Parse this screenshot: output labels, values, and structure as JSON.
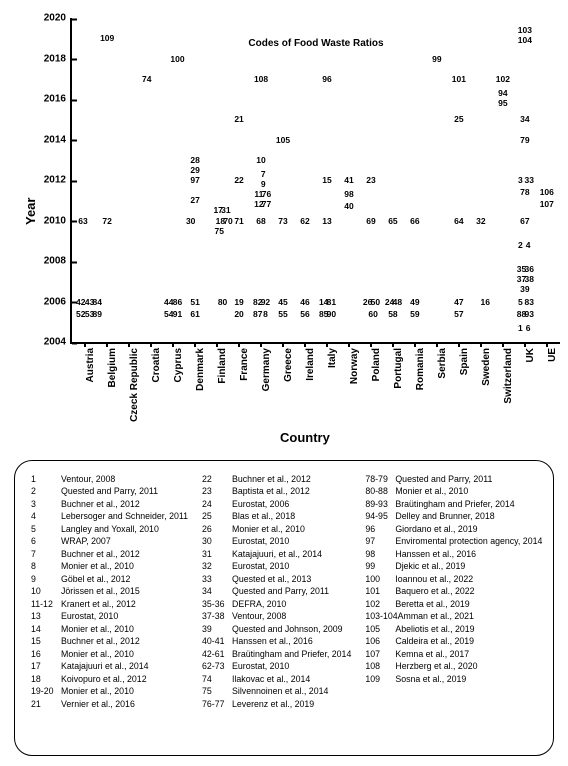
{
  "chart": {
    "type": "scatter-labeled",
    "title": "Codes of Food Waste Ratios",
    "title_fontsize": 10,
    "title_fontweight": "bold",
    "background_color": "#ffffff",
    "text_color": "#000000",
    "point_fontsize": 8.5,
    "ylabel": "Year",
    "xlabel": "Country",
    "axis_label_fontsize": 13,
    "tick_fontsize": 10,
    "ylim": [
      2004,
      2020
    ],
    "ytick_step": 2,
    "yticks": [
      2004,
      2006,
      2008,
      2010,
      2012,
      2014,
      2016,
      2018,
      2020
    ],
    "categories": [
      "Austria",
      "Belgium",
      "Czeck Republic",
      "Croatia",
      "Cyprus",
      "Denmark",
      "Finland",
      "France",
      "Germany",
      "Greece",
      "Ireland",
      "Italy",
      "Norway",
      "Poland",
      "Portugal",
      "Romania",
      "Serbia",
      "Spain",
      "Sweden",
      "Switzerland",
      "UK",
      "UE"
    ],
    "points": [
      {
        "c": 0,
        "y": 2010,
        "l": "63",
        "dx": -0.1
      },
      {
        "c": 0,
        "y": 2006,
        "l": "42",
        "dx": -0.2
      },
      {
        "c": 0,
        "y": 2006,
        "l": "43",
        "dx": 0.2
      },
      {
        "c": 0,
        "y": 2006,
        "l": "84",
        "dx": 0.55
      },
      {
        "c": 0,
        "y": 2005.4,
        "l": "52",
        "dx": -0.2
      },
      {
        "c": 0,
        "y": 2005.4,
        "l": "53",
        "dx": 0.2
      },
      {
        "c": 0,
        "y": 2005.4,
        "l": "89",
        "dx": 0.55
      },
      {
        "c": 1,
        "y": 2019,
        "l": "109"
      },
      {
        "c": 1,
        "y": 2010,
        "l": "72"
      },
      {
        "c": 3,
        "y": 2017,
        "l": "74",
        "dx": -0.2
      },
      {
        "c": 4,
        "y": 2018,
        "l": "100",
        "dx": 0.2
      },
      {
        "c": 4,
        "y": 2006,
        "l": "44",
        "dx": -0.2
      },
      {
        "c": 4,
        "y": 2006,
        "l": "86",
        "dx": 0.2
      },
      {
        "c": 4,
        "y": 2005.4,
        "l": "54",
        "dx": -0.2
      },
      {
        "c": 4,
        "y": 2005.4,
        "l": "91",
        "dx": 0.2
      },
      {
        "c": 5,
        "y": 2013,
        "l": "28"
      },
      {
        "c": 5,
        "y": 2012.5,
        "l": "29"
      },
      {
        "c": 5,
        "y": 2012,
        "l": "97"
      },
      {
        "c": 5,
        "y": 2011,
        "l": "27"
      },
      {
        "c": 5,
        "y": 2010,
        "l": "30",
        "dx": -0.2
      },
      {
        "c": 5,
        "y": 2006,
        "l": "51"
      },
      {
        "c": 5,
        "y": 2005.4,
        "l": "61"
      },
      {
        "c": 6,
        "y": 2010.5,
        "l": "17",
        "dx": 0.05
      },
      {
        "c": 6,
        "y": 2010.5,
        "l": "31",
        "dx": 0.4
      },
      {
        "c": 6,
        "y": 2010,
        "l": "18",
        "dx": 0.15
      },
      {
        "c": 6,
        "y": 2010,
        "l": "70",
        "dx": 0.5
      },
      {
        "c": 6,
        "y": 2009.5,
        "l": "75",
        "dx": 0.1
      },
      {
        "c": 6,
        "y": 2006,
        "l": "80",
        "dx": 0.25
      },
      {
        "c": 7,
        "y": 2015,
        "l": "21"
      },
      {
        "c": 7,
        "y": 2012,
        "l": "22"
      },
      {
        "c": 7,
        "y": 2010,
        "l": "71"
      },
      {
        "c": 7,
        "y": 2006,
        "l": "19"
      },
      {
        "c": 7,
        "y": 2005.4,
        "l": "20"
      },
      {
        "c": 8,
        "y": 2017,
        "l": "108"
      },
      {
        "c": 8,
        "y": 2013,
        "l": "10"
      },
      {
        "c": 8,
        "y": 2012.3,
        "l": "7",
        "dx": 0.1
      },
      {
        "c": 8,
        "y": 2011.8,
        "l": "9",
        "dx": 0.1
      },
      {
        "c": 8,
        "y": 2011.3,
        "l": "11",
        "dx": -0.1
      },
      {
        "c": 8,
        "y": 2011.3,
        "l": "76",
        "dx": 0.25
      },
      {
        "c": 8,
        "y": 2010.8,
        "l": "12",
        "dx": -0.1
      },
      {
        "c": 8,
        "y": 2010.8,
        "l": "77",
        "dx": 0.25
      },
      {
        "c": 8,
        "y": 2010,
        "l": "68"
      },
      {
        "c": 8,
        "y": 2006,
        "l": "82",
        "dx": -0.15
      },
      {
        "c": 8,
        "y": 2006,
        "l": "92",
        "dx": 0.2
      },
      {
        "c": 8,
        "y": 2005.4,
        "l": "87",
        "dx": -0.15
      },
      {
        "c": 8,
        "y": 2005.4,
        "l": "8",
        "dx": 0.2
      },
      {
        "c": 9,
        "y": 2014,
        "l": "105"
      },
      {
        "c": 9,
        "y": 2010,
        "l": "73"
      },
      {
        "c": 9,
        "y": 2006,
        "l": "45"
      },
      {
        "c": 9,
        "y": 2005.4,
        "l": "55"
      },
      {
        "c": 10,
        "y": 2010,
        "l": "62"
      },
      {
        "c": 10,
        "y": 2006,
        "l": "46"
      },
      {
        "c": 10,
        "y": 2005.4,
        "l": "56"
      },
      {
        "c": 11,
        "y": 2017,
        "l": "96"
      },
      {
        "c": 11,
        "y": 2012,
        "l": "15"
      },
      {
        "c": 11,
        "y": 2010,
        "l": "13"
      },
      {
        "c": 11,
        "y": 2006,
        "l": "14",
        "dx": -0.15
      },
      {
        "c": 11,
        "y": 2006,
        "l": "81",
        "dx": 0.2
      },
      {
        "c": 11,
        "y": 2005.4,
        "l": "85",
        "dx": -0.15
      },
      {
        "c": 11,
        "y": 2005.4,
        "l": "90",
        "dx": 0.2
      },
      {
        "c": 12,
        "y": 2012,
        "l": "41"
      },
      {
        "c": 12,
        "y": 2011.3,
        "l": "98"
      },
      {
        "c": 12,
        "y": 2010.7,
        "l": "40"
      },
      {
        "c": 13,
        "y": 2012,
        "l": "23"
      },
      {
        "c": 13,
        "y": 2010,
        "l": "69"
      },
      {
        "c": 13,
        "y": 2006,
        "l": "26",
        "dx": -0.15
      },
      {
        "c": 13,
        "y": 2006,
        "l": "50",
        "dx": 0.2
      },
      {
        "c": 13,
        "y": 2005.4,
        "l": "60",
        "dx": 0.1
      },
      {
        "c": 14,
        "y": 2010,
        "l": "65"
      },
      {
        "c": 14,
        "y": 2006,
        "l": "24",
        "dx": -0.15
      },
      {
        "c": 14,
        "y": 2006,
        "l": "48",
        "dx": 0.2
      },
      {
        "c": 14,
        "y": 2005.4,
        "l": "58",
        "dx": 0.0
      },
      {
        "c": 15,
        "y": 2010,
        "l": "66"
      },
      {
        "c": 15,
        "y": 2006,
        "l": "49"
      },
      {
        "c": 15,
        "y": 2005.4,
        "l": "59"
      },
      {
        "c": 16,
        "y": 2018,
        "l": "99"
      },
      {
        "c": 17,
        "y": 2017,
        "l": "101"
      },
      {
        "c": 17,
        "y": 2015,
        "l": "25"
      },
      {
        "c": 17,
        "y": 2010,
        "l": "64"
      },
      {
        "c": 17,
        "y": 2006,
        "l": "47"
      },
      {
        "c": 17,
        "y": 2005.4,
        "l": "57"
      },
      {
        "c": 18,
        "y": 2010,
        "l": "32"
      },
      {
        "c": 18,
        "y": 2006,
        "l": "16",
        "dx": 0.2
      },
      {
        "c": 19,
        "y": 2017,
        "l": "102"
      },
      {
        "c": 19,
        "y": 2016.3,
        "l": "94"
      },
      {
        "c": 19,
        "y": 2015.8,
        "l": "95"
      },
      {
        "c": 20,
        "y": 2019.4,
        "l": "103"
      },
      {
        "c": 20,
        "y": 2018.9,
        "l": "104"
      },
      {
        "c": 20,
        "y": 2015,
        "l": "34"
      },
      {
        "c": 20,
        "y": 2014,
        "l": "79"
      },
      {
        "c": 20,
        "y": 2012,
        "l": "3",
        "dx": -0.2
      },
      {
        "c": 20,
        "y": 2012,
        "l": "33",
        "dx": 0.2
      },
      {
        "c": 20,
        "y": 2011.4,
        "l": "78"
      },
      {
        "c": 20,
        "y": 2010,
        "l": "67"
      },
      {
        "c": 20,
        "y": 2008.8,
        "l": "2",
        "dx": -0.2
      },
      {
        "c": 20,
        "y": 2008.8,
        "l": "4",
        "dx": 0.15
      },
      {
        "c": 20,
        "y": 2007.6,
        "l": "35",
        "dx": -0.15
      },
      {
        "c": 20,
        "y": 2007.6,
        "l": "36",
        "dx": 0.2
      },
      {
        "c": 20,
        "y": 2007.1,
        "l": "37",
        "dx": -0.15
      },
      {
        "c": 20,
        "y": 2007.1,
        "l": "38",
        "dx": 0.2
      },
      {
        "c": 20,
        "y": 2006.6,
        "l": "39"
      },
      {
        "c": 20,
        "y": 2006,
        "l": "5",
        "dx": -0.2
      },
      {
        "c": 20,
        "y": 2006,
        "l": "83",
        "dx": 0.2
      },
      {
        "c": 20,
        "y": 2005.4,
        "l": "88",
        "dx": -0.15
      },
      {
        "c": 20,
        "y": 2005.4,
        "l": "93",
        "dx": 0.2
      },
      {
        "c": 20,
        "y": 2004.7,
        "l": "1",
        "dx": -0.2
      },
      {
        "c": 20,
        "y": 2004.7,
        "l": "6",
        "dx": 0.15
      },
      {
        "c": 21,
        "y": 2011.4,
        "l": "106"
      },
      {
        "c": 21,
        "y": 2010.8,
        "l": "107"
      }
    ]
  },
  "legend": {
    "fontsize": 8.8,
    "border_radius": 18,
    "columns": [
      [
        {
          "id": "1",
          "ref": "Ventour, 2008"
        },
        {
          "id": "2",
          "ref": "Quested and Parry, 2011"
        },
        {
          "id": "3",
          "ref": "Buchner et al., 2012"
        },
        {
          "id": "4",
          "ref": "Lebersoger and Schneider, 2011"
        },
        {
          "id": "5",
          "ref": "Langley and Yoxall, 2010"
        },
        {
          "id": "6",
          "ref": "WRAP, 2007"
        },
        {
          "id": "7",
          "ref": "Buchner et al., 2012"
        },
        {
          "id": "8",
          "ref": "Monier et al., 2010"
        },
        {
          "id": "9",
          "ref": "Göbel et al., 2012"
        },
        {
          "id": "10",
          "ref": "Jörissen et al., 2015"
        },
        {
          "id": "11-12",
          "ref": "Kranert et al., 2012"
        },
        {
          "id": "13",
          "ref": "Eurostat, 2010"
        },
        {
          "id": "14",
          "ref": "Monier et al., 2010"
        },
        {
          "id": "15",
          "ref": "Buchner et al., 2012"
        },
        {
          "id": "16",
          "ref": "Monier et al., 2010"
        },
        {
          "id": "17",
          "ref": "Katajajuuri et al., 2014"
        },
        {
          "id": "18",
          "ref": "Koivopuro et al., 2012"
        },
        {
          "id": "19-20",
          "ref": "Monier et al., 2010"
        },
        {
          "id": "21",
          "ref": "Vernier et al., 2016"
        }
      ],
      [
        {
          "id": "22",
          "ref": "Buchner et al., 2012"
        },
        {
          "id": "23",
          "ref": "Baptista et al., 2012"
        },
        {
          "id": "24",
          "ref": "Eurostat, 2006"
        },
        {
          "id": "25",
          "ref": "Blas et al., 2018"
        },
        {
          "id": "26",
          "ref": "Monier et al., 2010"
        },
        {
          "id": "30",
          "ref": "Eurostat, 2010"
        },
        {
          "id": "31",
          "ref": "Katajajuuri, et al., 2014"
        },
        {
          "id": "32",
          "ref": "Eurostat, 2010"
        },
        {
          "id": "33",
          "ref": "Quested et al., 2013"
        },
        {
          "id": "34",
          "ref": "Quested and Parry, 2011"
        },
        {
          "id": "35-36",
          "ref": "DEFRA, 2010"
        },
        {
          "id": "37-38",
          "ref": "Ventour, 2008"
        },
        {
          "id": "39",
          "ref": "Quested and Johnson, 2009"
        },
        {
          "id": "40-41",
          "ref": "Hanssen et al., 2016"
        },
        {
          "id": "42-61",
          "ref": "Braütingham and Priefer, 2014"
        },
        {
          "id": "62-73",
          "ref": "Eurostat, 2010"
        },
        {
          "id": "74",
          "ref": "Ilakovac et al., 2014"
        },
        {
          "id": "75",
          "ref": "Silvennoinen et al., 2014"
        },
        {
          "id": "76-77",
          "ref": "Leverenz et al., 2019"
        }
      ],
      [
        {
          "id": "78-79",
          "ref": "Quested and Parry, 2011"
        },
        {
          "id": "80-88",
          "ref": "Monier et al., 2010"
        },
        {
          "id": "89-93",
          "ref": "Braütingham and Priefer, 2014"
        },
        {
          "id": "94-95",
          "ref": "Delley and Brunner, 2018"
        },
        {
          "id": "96",
          "ref": "Giordano et al., 2019"
        },
        {
          "id": "97",
          "ref": "Enviromental protection agency, 2014"
        },
        {
          "id": "98",
          "ref": "Hanssen et al., 2016"
        },
        {
          "id": "99",
          "ref": "Djekic et al., 2019"
        },
        {
          "id": "100",
          "ref": "Ioannou et al., 2022"
        },
        {
          "id": "101",
          "ref": "Baquero et al., 2022"
        },
        {
          "id": "102",
          "ref": "Beretta et al., 2019"
        },
        {
          "id": "103-104",
          "ref": "Amman et al., 2021"
        },
        {
          "id": "105",
          "ref": "Abeliotis et al., 2019"
        },
        {
          "id": "106",
          "ref": "Caldeira et al., 2019"
        },
        {
          "id": "107",
          "ref": "Kemna et al., 2017"
        },
        {
          "id": "108",
          "ref": "Herzberg et al., 2020"
        },
        {
          "id": "109",
          "ref": "Sosna et al., 2019"
        }
      ]
    ]
  }
}
